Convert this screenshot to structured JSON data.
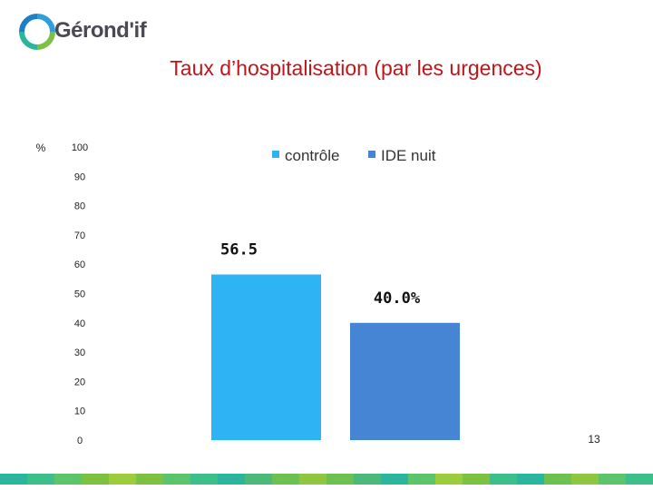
{
  "header": {
    "logo_text": "Gérond'if",
    "title": "Taux d’hospitalisation (par les urgences)",
    "page_number": "13"
  },
  "colors": {
    "title": "#c0151a",
    "controle": "#2eb4f5",
    "ide_nuit": "#4684d4"
  },
  "chart_data": {
    "type": "bar",
    "title": "Taux d’hospitalisation (par les urgences)",
    "ylabel": "%",
    "ylim": [
      0,
      100
    ],
    "yticks": [
      0,
      10,
      20,
      30,
      40,
      50,
      60,
      70,
      80,
      90,
      100
    ],
    "legend_position": "top",
    "series": [
      {
        "name": "contrôle",
        "value": 56.5,
        "label": "56.5",
        "color": "#2eb4f5"
      },
      {
        "name": "IDE nuit",
        "value": 40.0,
        "label": "40.0%",
        "color": "#4684d4"
      }
    ]
  }
}
